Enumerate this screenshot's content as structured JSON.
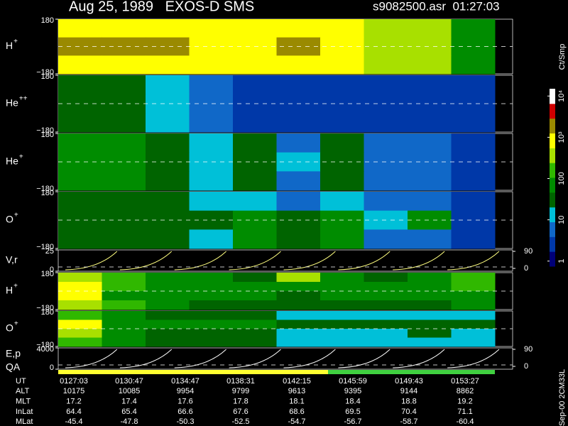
{
  "header": {
    "left": "Aug 25, 1989   EXOS-D SMS",
    "right": "s9082500.asr  01:27:03"
  },
  "panels": [
    {
      "label": "H",
      "sup": "+",
      "ticks": [
        180,
        {
          "value": -180,
          "label": "−180"
        }
      ],
      "levels": [
        [
          600,
          700,
          600,
          600,
          600,
          600,
          600,
          500,
          300,
          100
        ],
        [
          2000,
          2000,
          2000,
          700,
          600,
          2000,
          600,
          500,
          300,
          100
        ],
        [
          600,
          600,
          600,
          600,
          600,
          600,
          600,
          500,
          300,
          80
        ]
      ]
    },
    {
      "label": "He",
      "sup": "++",
      "ticks": [
        180,
        {
          "value": -180,
          "label": "−180"
        }
      ],
      "levels": [
        [
          40,
          40,
          12,
          5,
          3,
          3,
          3,
          3,
          3,
          3
        ],
        [
          30,
          30,
          10,
          5,
          3,
          3,
          3,
          3,
          3,
          3
        ],
        [
          40,
          30,
          12,
          5,
          3,
          3,
          3,
          3,
          3,
          3
        ]
      ]
    },
    {
      "label": "He",
      "sup": "+",
      "ticks": [
        180,
        {
          "value": -180,
          "label": "−180"
        }
      ],
      "levels": [
        [
          60,
          60,
          30,
          12,
          30,
          5,
          40,
          8,
          4,
          3
        ],
        [
          60,
          60,
          30,
          10,
          40,
          12,
          40,
          8,
          5,
          3
        ],
        [
          60,
          60,
          30,
          12,
          30,
          6,
          30,
          6,
          4,
          3
        ]
      ]
    },
    {
      "label": "O",
      "sup": "+",
      "ticks": [
        180,
        {
          "value": -180,
          "label": "−180"
        }
      ],
      "levels": [
        [
          40,
          40,
          30,
          20,
          12,
          6,
          12,
          5,
          4,
          3
        ],
        [
          40,
          40,
          30,
          30,
          80,
          40,
          60,
          12,
          60,
          3
        ],
        [
          40,
          40,
          30,
          20,
          60,
          40,
          60,
          5,
          4,
          3
        ]
      ]
    },
    {
      "label": "V,r",
      "ticks": [
        25,
        0
      ],
      "right_ticks": [
        90,
        0
      ]
    },
    {
      "label": "H",
      "sup": "+",
      "ticks": [
        180,
        {
          "value": -180,
          "label": "−180"
        }
      ],
      "levels": [
        [
          300,
          150,
          60,
          60,
          40,
          300,
          60,
          40,
          60,
          150
        ],
        [
          600,
          150,
          60,
          60,
          60,
          60,
          60,
          60,
          60,
          150
        ],
        [
          600,
          100,
          60,
          60,
          60,
          40,
          60,
          60,
          60,
          100
        ],
        [
          300,
          150,
          60,
          40,
          40,
          30,
          40,
          40,
          40,
          100
        ]
      ]
    },
    {
      "label": "O",
      "sup": "+",
      "ticks": [
        180,
        {
          "value": -180,
          "label": "−180"
        }
      ],
      "levels": [
        [
          150,
          60,
          40,
          40,
          40,
          20,
          20,
          20,
          20,
          12
        ],
        [
          600,
          100,
          60,
          60,
          60,
          40,
          40,
          40,
          40,
          30
        ],
        [
          300,
          60,
          40,
          40,
          30,
          20,
          20,
          12,
          30,
          12
        ],
        [
          150,
          60,
          40,
          40,
          30,
          12,
          12,
          12,
          12,
          12
        ]
      ]
    },
    {
      "label": "E,p",
      "label2": "QA",
      "ticks": [
        4000,
        0
      ],
      "right_ticks": [
        90,
        0
      ]
    }
  ],
  "colorbar": {
    "unit": "Ct/Smp",
    "lim": [
      0.75,
      15000
    ],
    "ticks": [
      {
        "value": 10000,
        "label": "10⁴"
      },
      {
        "value": 1000,
        "label": "10³"
      },
      100,
      10,
      1
    ],
    "colors": [
      "#000078",
      "#0038a8",
      "#1068c8",
      "#00c0d8",
      "#006400",
      "#008c00",
      "#30b800",
      "#a8e000",
      "#ffff00",
      "#9a8a00",
      "#d00000",
      "#ffffff"
    ]
  },
  "table": [
    {
      "label": "UT",
      "values": [
        "0127:03",
        "0130:47",
        "0134:47",
        "0138:31",
        "0142:15",
        "0145:59",
        "0149:43",
        "0153:27"
      ]
    },
    {
      "label": "ALT",
      "values": [
        10175,
        10085,
        9954,
        9799,
        9613,
        9395,
        9144,
        8862
      ]
    },
    {
      "label": "MLT",
      "values": [
        17.2,
        17.4,
        17.6,
        17.8,
        18.1,
        18.4,
        18.8,
        19.2
      ]
    },
    {
      "label": "InLat",
      "values": [
        64.4,
        65.4,
        66.6,
        67.6,
        68.6,
        69.5,
        70.4,
        71.1
      ]
    },
    {
      "label": "MLat",
      "values": [
        -45.4,
        -47.8,
        -50.3,
        -52.5,
        -54.7,
        -56.7,
        -58.7,
        -60.4
      ]
    }
  ],
  "footer": "Sep-00 2CM33L"
}
